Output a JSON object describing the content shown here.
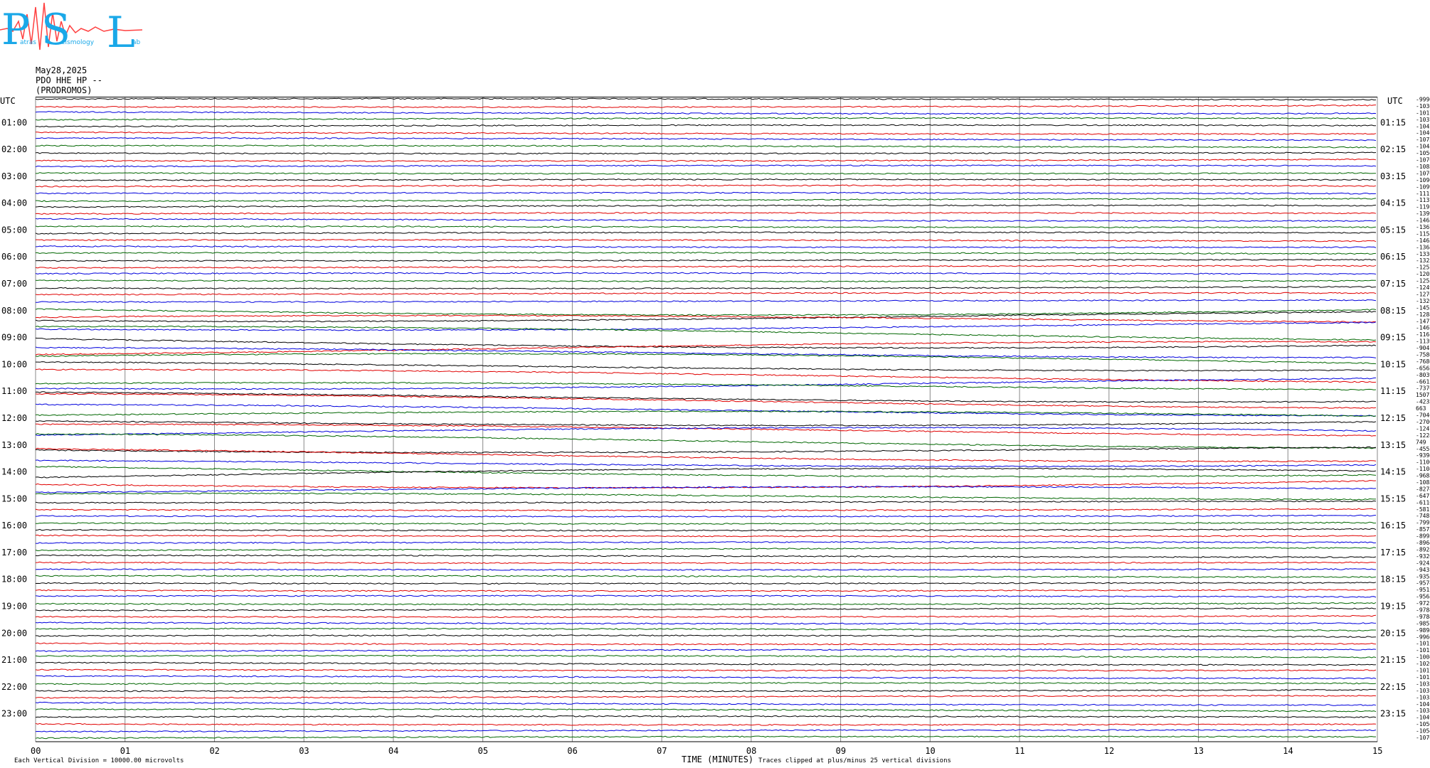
{
  "header": {
    "logo_alt": "Patras Seismology Lab",
    "logo_letters": [
      "P",
      "S",
      "L"
    ],
    "logo_words": [
      "atras",
      "eismology",
      "ab"
    ],
    "date": "May28,2025",
    "station": "PDO HHE HP --",
    "location": "(PRODROMOS)"
  },
  "footer": {
    "scale_note": "Each Vertical Division = 10000.00 microvolts",
    "xlabel": "TIME (MINUTES)",
    "clip_note": "Traces clipped at plus/minus 25 vertical divisions"
  },
  "colors": {
    "black": "#000000",
    "red": "#e00000",
    "blue": "#0000dd",
    "green": "#006600",
    "grid": "#888888"
  },
  "chart_data": {
    "type": "line",
    "title": "",
    "xlabel": "TIME (MINUTES)",
    "xlim": [
      0,
      15
    ],
    "x_ticks": [
      "00",
      "01",
      "02",
      "03",
      "04",
      "05",
      "06",
      "07",
      "08",
      "09",
      "10",
      "11",
      "12",
      "13",
      "14",
      "15"
    ],
    "left_axis_label": "UTC",
    "right_axis_label": "UTC",
    "left_hour_labels": [
      "01:00",
      "02:00",
      "03:00",
      "04:00",
      "05:00",
      "06:00",
      "07:00",
      "08:00",
      "09:00",
      "10:00",
      "11:00",
      "12:00",
      "13:00",
      "14:00",
      "15:00",
      "16:00",
      "17:00",
      "18:00",
      "19:00",
      "20:00",
      "21:00",
      "22:00",
      "23:00"
    ],
    "right_hour_labels": [
      "01:15",
      "02:15",
      "03:15",
      "04:15",
      "05:15",
      "06:15",
      "07:15",
      "08:15",
      "09:15",
      "10:15",
      "11:15",
      "12:15",
      "13:15",
      "14:15",
      "15:15",
      "16:15",
      "17:15",
      "18:15",
      "19:15",
      "20:15",
      "21:15",
      "22:15",
      "23:15"
    ],
    "trace_minutes": 15,
    "color_cycle": [
      "black",
      "red",
      "blue",
      "green"
    ],
    "offsets": [
      -9996,
      -10365,
      -10179,
      -10370,
      -10429,
      -10404,
      -10732,
      -10488,
      -10503,
      -10763,
      -10836,
      -10707,
      -10966,
      -10992,
      -11113,
      -11375,
      -11918,
      -13995,
      -14654,
      -13679,
      -11581,
      -14631,
      -13686,
      -13361,
      -13251,
      -12579,
      -12029,
      -12535,
      -12494,
      -12760,
      -13262,
      -14529,
      -12887,
      -14774,
      -14679,
      -11619,
      -11397,
      -9041,
      -7586,
      -7686,
      -6562,
      -8039,
      -6613,
      -7370,
      1507,
      -4232,
      663,
      -7040,
      -27064,
      -12474,
      -12246,
      749,
      -4551,
      -9394,
      -11062,
      -11083,
      -9683,
      -10859,
      -8274,
      -6471,
      -6116,
      -5817,
      -7481,
      -7992,
      -8572,
      -8995,
      -8964,
      -8928,
      -9320,
      -9243,
      -9431,
      -9355,
      -9574,
      -9512,
      -9565,
      -9721,
      -9784,
      -9784,
      -9857,
      -9898,
      -9960,
      -10116,
      -10124,
      -10045,
      -10204,
      -10172,
      -10127,
      -10334,
      -10314,
      -10352,
      -10404,
      -10383,
      -10498,
      -10567,
      -10548,
      -10708
    ],
    "vertical_division_microvolts": 10000.0,
    "clip_divisions": 25
  }
}
